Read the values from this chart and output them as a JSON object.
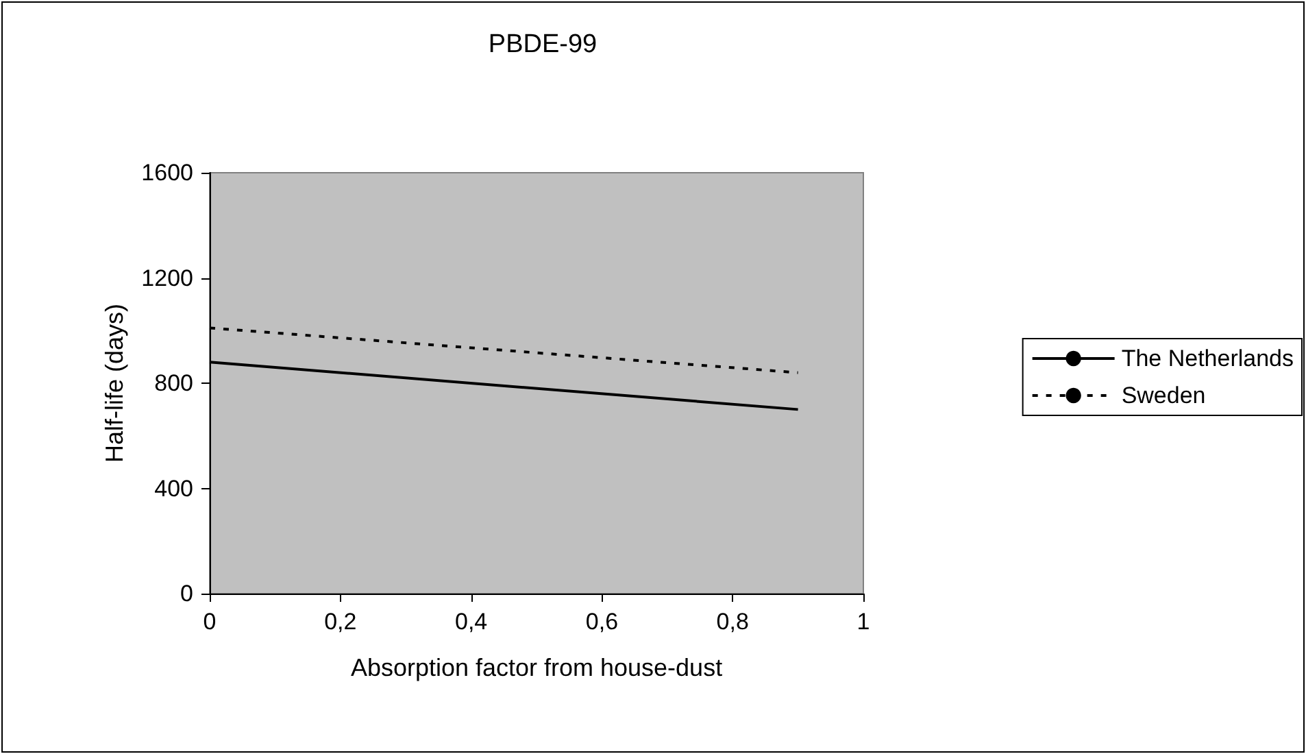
{
  "chart_data": {
    "type": "line",
    "title": "PBDE-99",
    "xlabel": "Absorption factor from house-dust",
    "ylabel": "Half-life (days)",
    "x": [
      0,
      0.9
    ],
    "series": [
      {
        "name": "The Netherlands",
        "color": "#000000",
        "values": [
          880,
          700
        ],
        "line_style": "solid"
      },
      {
        "name": "Sweden",
        "color": "#000000",
        "values": [
          1010,
          840
        ],
        "line_style": "dotted"
      }
    ],
    "xlim": [
      0,
      1
    ],
    "xticks": [
      0,
      {
        "value": 0.2,
        "label": "0,2"
      },
      {
        "value": 0.4,
        "label": "0,4"
      },
      {
        "value": 0.6,
        "label": "0,6"
      },
      {
        "value": 0.8,
        "label": "0,8"
      },
      1
    ],
    "ylim": [
      0,
      1600
    ],
    "yticks": [
      0,
      400,
      800,
      1200,
      1600
    ],
    "grid": false,
    "legend": "right",
    "marker": "none"
  }
}
